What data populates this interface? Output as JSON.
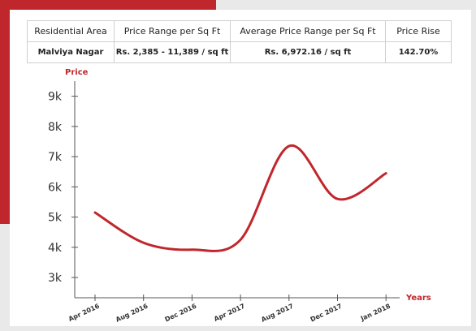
{
  "table": {
    "header": [
      "Residential Area",
      "Price Range per Sq Ft",
      "Average Price Range per Sq Ft",
      "Price Rise"
    ],
    "rows": [
      [
        "Malviya Nagar",
        "Rs. 2,385 - 11,389 / sq ft",
        "Rs. 6,972.16 / sq ft",
        "142.70%"
      ]
    ]
  },
  "chart_data": {
    "type": "line",
    "ylabel": "Price",
    "xlabel": "Years",
    "categories": [
      "Apr 2016",
      "Aug 2016",
      "Dec 2016",
      "Apr 2017",
      "Aug 2017",
      "Dec 2017",
      "Jan 2018"
    ],
    "values": [
      5150,
      4150,
      3920,
      4250,
      7350,
      5600,
      6450
    ],
    "color": "#c0272d",
    "ylim": [
      2330,
      9500
    ],
    "yticks": [
      {
        "value": 3000,
        "label": "3k"
      },
      {
        "value": 4000,
        "label": "4k"
      },
      {
        "value": 5000,
        "label": "5k"
      },
      {
        "value": 6000,
        "label": "6k"
      },
      {
        "value": 7000,
        "label": "7k"
      },
      {
        "value": 8000,
        "label": "8k"
      },
      {
        "value": 9000,
        "label": "9k"
      }
    ]
  }
}
